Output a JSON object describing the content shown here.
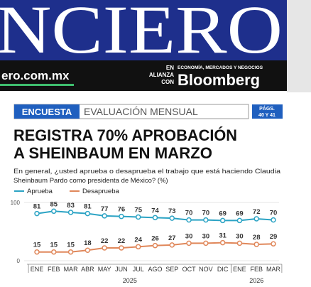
{
  "masthead": {
    "logo": "NCIERO",
    "site": "ero.com.mx",
    "alliance": [
      "EN",
      "ALIANZA",
      "CON"
    ],
    "tagline": "ECONOMÍA, MERCADOS Y NEGOCIOS",
    "partner": "Bloomberg"
  },
  "section": {
    "tag": "ENCUESTA",
    "label": "EVALUACIÓN MENSUAL",
    "pages": [
      "PÁGS.",
      "40 Y 41"
    ]
  },
  "headline": [
    "REGISTRA 70% APROBACIÓN",
    "A SHEINBAUM EN MARZO"
  ],
  "chart_data": {
    "type": "line",
    "subtitle": [
      "En general, ¿usted aprueba o desaprueba el trabajo que está haciendo Claudia",
      "Sheinbaum Pardo como presidenta de México? (%)"
    ],
    "categories": [
      "ENE",
      "FEB",
      "MAR",
      "ABR",
      "MAY",
      "JUN",
      "JUL",
      "AGO",
      "SEP",
      "OCT",
      "NOV",
      "DIC",
      "ENE",
      "FEB",
      "MAR"
    ],
    "year_labels": [
      "2025",
      "2026"
    ],
    "series": [
      {
        "name": "Aprueba",
        "color": "#2ba3c4",
        "values": [
          81,
          85,
          83,
          81,
          77,
          76,
          75,
          74,
          73,
          70,
          70,
          69,
          69,
          72,
          70
        ]
      },
      {
        "name": "Desaprueba",
        "color": "#e0875a",
        "values": [
          15,
          15,
          15,
          18,
          22,
          22,
          24,
          26,
          27,
          30,
          30,
          31,
          30,
          28,
          29
        ]
      }
    ],
    "ylim": [
      0,
      100
    ],
    "yticks": [
      0,
      100
    ]
  }
}
